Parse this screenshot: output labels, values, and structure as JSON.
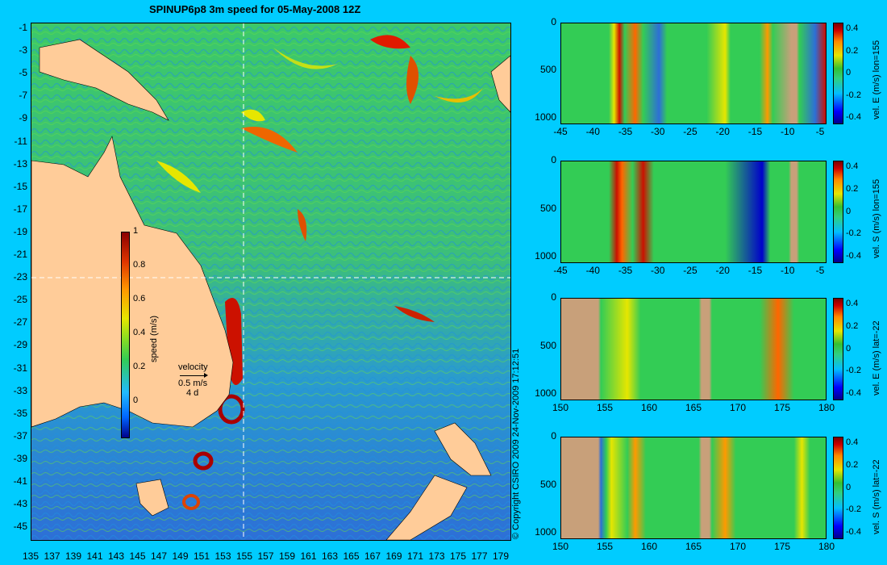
{
  "title": "SPINUP6p8 3m speed for 05-May-2008 12Z",
  "copyright": "© Copyright CSIRO 2009   24-Nov-2009 17:12:51",
  "map": {
    "lat_ticks": [
      "-1",
      "-3",
      "-5",
      "-7",
      "-9",
      "-11",
      "-13",
      "-15",
      "-17",
      "-19",
      "-21",
      "-23",
      "-25",
      "-27",
      "-29",
      "-31",
      "-33",
      "-35",
      "-37",
      "-39",
      "-41",
      "-43",
      "-45"
    ],
    "lon_ticks": [
      "135",
      "137",
      "139",
      "141",
      "143",
      "145",
      "147",
      "149",
      "151",
      "153",
      "155",
      "157",
      "159",
      "161",
      "163",
      "165",
      "167",
      "169",
      "171",
      "173",
      "175",
      "177",
      "179"
    ],
    "colorbar": {
      "label": "speed (m/s)",
      "ticks": [
        "1",
        "0.8",
        "0.6",
        "0.4",
        "0.2",
        "0"
      ]
    },
    "velocity_legend": {
      "title": "velocity",
      "speed": "0.5 m/s",
      "time": "4 d"
    },
    "colors": {
      "land": "#ffcc99",
      "ocean_low": "#2d6fd6",
      "ocean_mid": "#33cc55",
      "ocean_high": "#cc1100"
    }
  },
  "panels": [
    {
      "label": "vel. E (m/s) lon=155",
      "x_ticks": [
        "-45",
        "-40",
        "-35",
        "-30",
        "-25",
        "-20",
        "-15",
        "-10",
        "-5"
      ],
      "y_ticks": [
        "0",
        "500",
        "1000"
      ],
      "cb_ticks": [
        "0.4",
        "0.2",
        "0",
        "-0.2",
        "-0.4"
      ]
    },
    {
      "label": "vel. S (m/s) lon=155",
      "x_ticks": [
        "-45",
        "-40",
        "-35",
        "-30",
        "-25",
        "-20",
        "-15",
        "-10",
        "-5"
      ],
      "y_ticks": [
        "0",
        "500",
        "1000"
      ],
      "cb_ticks": [
        "0.4",
        "0.2",
        "0",
        "-0.2",
        "-0.4"
      ]
    },
    {
      "label": "vel. E (m/s) lat=-22",
      "x_ticks": [
        "150",
        "155",
        "160",
        "165",
        "170",
        "175",
        "180"
      ],
      "y_ticks": [
        "0",
        "500",
        "1000"
      ],
      "cb_ticks": [
        "0.4",
        "0.2",
        "0",
        "-0.2",
        "-0.4"
      ]
    },
    {
      "label": "vel. S (m/s) lat=-22",
      "x_ticks": [
        "150",
        "155",
        "160",
        "165",
        "170",
        "175",
        "180"
      ],
      "y_ticks": [
        "0",
        "500",
        "1000"
      ],
      "cb_ticks": [
        "0.4",
        "0.2",
        "0",
        "-0.2",
        "-0.4"
      ]
    }
  ]
}
